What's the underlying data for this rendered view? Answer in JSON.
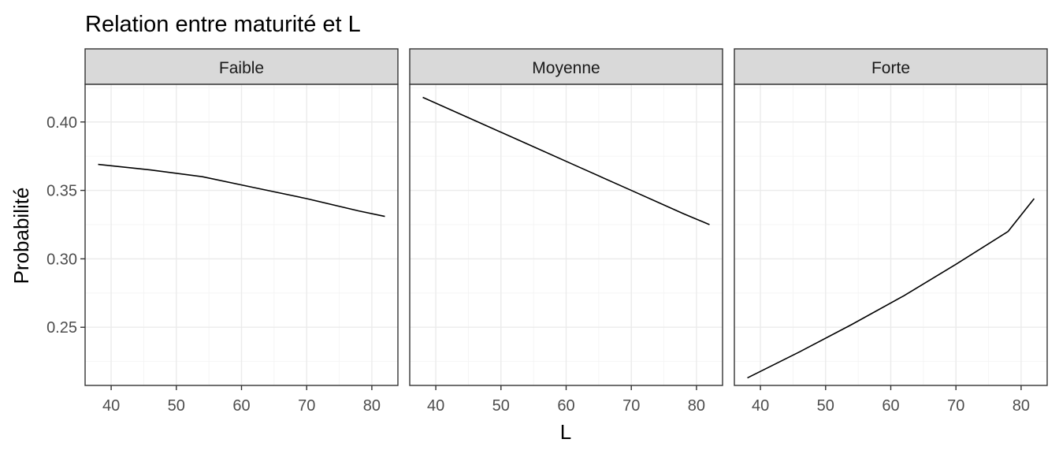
{
  "chart_data": {
    "type": "line",
    "title": "Relation entre maturité et L",
    "xlabel": "L",
    "ylabel": "Probabilité",
    "xlim": [
      36,
      84
    ],
    "ylim": [
      0.2075,
      0.4275
    ],
    "x_ticks": [
      40,
      50,
      60,
      70,
      80
    ],
    "x_tick_labels": [
      "40",
      "50",
      "60",
      "70",
      "80"
    ],
    "y_ticks": [
      0.25,
      0.3,
      0.35,
      0.4
    ],
    "y_tick_labels": [
      "0.25",
      "0.30",
      "0.35",
      "0.40"
    ],
    "grid": true,
    "legend": "none",
    "facets": [
      {
        "label": "Faible",
        "x": [
          38,
          46,
          54,
          62,
          70,
          78,
          82
        ],
        "y": [
          0.369,
          0.365,
          0.36,
          0.352,
          0.344,
          0.335,
          0.331
        ]
      },
      {
        "label": "Moyenne",
        "x": [
          38,
          46,
          54,
          62,
          70,
          78,
          82
        ],
        "y": [
          0.418,
          0.401,
          0.384,
          0.367,
          0.35,
          0.333,
          0.325
        ]
      },
      {
        "label": "Forte",
        "x": [
          38,
          46,
          54,
          62,
          70,
          78,
          82
        ],
        "y": [
          0.213,
          0.232,
          0.252,
          0.273,
          0.296,
          0.32,
          0.344
        ]
      }
    ]
  }
}
